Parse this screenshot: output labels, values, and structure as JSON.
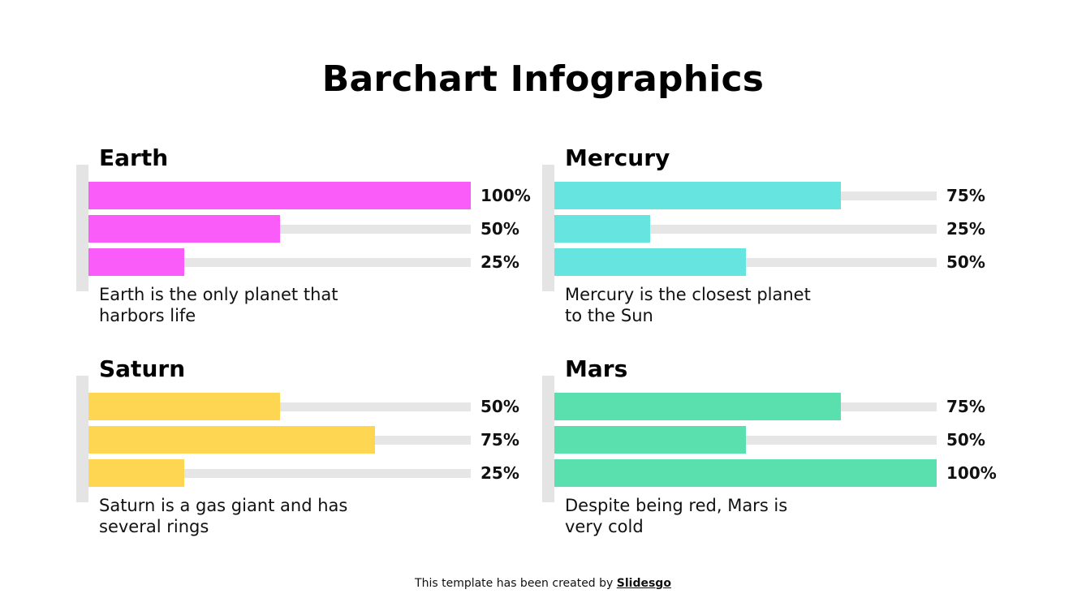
{
  "title": "Barchart Infographics",
  "footer": {
    "text": "This template has been created by ",
    "brand": "Slidesgo"
  },
  "colors": {
    "earth": "#f95cf9",
    "mercury": "#66e5e0",
    "saturn": "#ffd652",
    "mars": "#5ae0ae",
    "track": "#e6e6e6"
  },
  "chart_data": [
    {
      "type": "bar",
      "title": "Earth",
      "description": "Earth is the only planet that harbors life",
      "values": [
        100,
        50,
        25
      ],
      "labels": [
        "100%",
        "50%",
        "25%"
      ],
      "ylim": [
        0,
        100
      ]
    },
    {
      "type": "bar",
      "title": "Mercury",
      "description": "Mercury is the closest planet to the Sun",
      "values": [
        75,
        25,
        50
      ],
      "labels": [
        "75%",
        "25%",
        "50%"
      ],
      "ylim": [
        0,
        100
      ]
    },
    {
      "type": "bar",
      "title": "Saturn",
      "description": "Saturn is a gas giant and has several rings",
      "values": [
        50,
        75,
        25
      ],
      "labels": [
        "50%",
        "75%",
        "25%"
      ],
      "ylim": [
        0,
        100
      ]
    },
    {
      "type": "bar",
      "title": "Mars",
      "description": "Despite being red, Mars is very cold",
      "values": [
        75,
        50,
        100
      ],
      "labels": [
        "75%",
        "50%",
        "100%"
      ],
      "ylim": [
        0,
        100
      ]
    }
  ]
}
